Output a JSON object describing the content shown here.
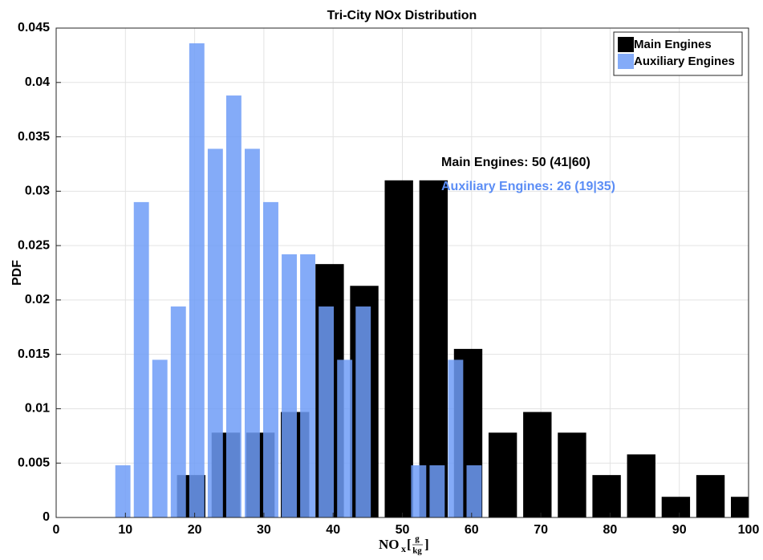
{
  "chart_data": {
    "type": "histogram",
    "title": "Tri-City NOx Distribution",
    "ylabel": "PDF",
    "xlabel_parts": [
      "NO",
      "x",
      "g",
      "kg"
    ],
    "xlim": [
      0,
      100
    ],
    "xticks": [
      0,
      10,
      20,
      30,
      40,
      50,
      60,
      70,
      80,
      90,
      100
    ],
    "ylim": [
      0,
      0.045
    ],
    "yticks": [
      0,
      0.005,
      0.01,
      0.015,
      0.02,
      0.025,
      0.03,
      0.035,
      0.04,
      0.045
    ],
    "grid": true,
    "legend": "upper right",
    "series": [
      {
        "name": "Main Engines",
        "color": "#000000",
        "bins": [
          17,
          22,
          27,
          32,
          37,
          42,
          47,
          52,
          57,
          62,
          67,
          72,
          77,
          82,
          87,
          92,
          97,
          102
        ],
        "values": [
          0.0039,
          0.0078,
          0.0078,
          0.0097,
          0.0233,
          0.0213,
          0.031,
          0.031,
          0.0155,
          0.0078,
          0.0097,
          0.0078,
          0.0039,
          0.0058,
          0.0019,
          0.0039,
          0.0019
        ]
      },
      {
        "name": "Auxiliary Engines",
        "color": "#6f9cf7",
        "bins": [
          8.3,
          10.97,
          13.64,
          16.31,
          18.98,
          21.65,
          24.32,
          26.99,
          29.66,
          32.33,
          35.0,
          37.67,
          40.34,
          43.01,
          45.68,
          48.35,
          51.02,
          53.69,
          56.36,
          59.03,
          61.7
        ],
        "values": [
          0.0048,
          0.029,
          0.0145,
          0.0194,
          0.0436,
          0.0339,
          0.0388,
          0.0339,
          0.029,
          0.0242,
          0.0242,
          0.0194,
          0.0145,
          0.0194,
          0,
          0,
          0.0048,
          0.0048,
          0.0145,
          0.0048
        ]
      }
    ],
    "annotations": [
      {
        "text": "Main Engines: 50 (41|60)",
        "color": "#000000"
      },
      {
        "text": "Auxiliary Engines: 26 (19|35)",
        "color": "#5b8df5"
      }
    ]
  }
}
